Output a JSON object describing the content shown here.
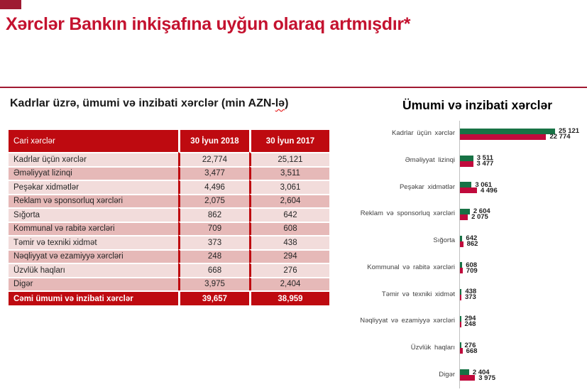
{
  "header": {
    "title": "Xərclər Bankın inkişafına uyğun olaraq artmışdır*",
    "title_color": "#C4122F",
    "brand_mark_color": "#9E1B32",
    "divider_color": "#A11931"
  },
  "table": {
    "title_prefix": "Kadrlar üzrə, ümumi və inzibati xərclər (min AZN-",
    "title_wavy": "lə",
    "title_suffix": ")",
    "columns": [
      "Cari xərclər",
      "30 İyun 2018",
      "30 İyun 2017"
    ],
    "rows": [
      {
        "label": "Kadrlar üçün xərclər",
        "y2018": "22,774",
        "y2017": "25,121"
      },
      {
        "label": "Əməliyyat lizinqi",
        "y2018": "3,477",
        "y2017": "3,511"
      },
      {
        "label": "Peşəkar xidmətlər",
        "y2018": "4,496",
        "y2017": "3,061"
      },
      {
        "label": "Reklam və sponsorluq xərcləri",
        "y2018": "2,075",
        "y2017": "2,604"
      },
      {
        "label": "Sığorta",
        "y2018": "862",
        "y2017": "642"
      },
      {
        "label": "Kommunal və rabitə xərcləri",
        "y2018": "709",
        "y2017": "608"
      },
      {
        "label": "Təmir və texniki xidmət",
        "y2018": "373",
        "y2017": "438"
      },
      {
        "label": "Nəqliyyat və ezamiyyə xərcləri",
        "y2018": "248",
        "y2017": "294"
      },
      {
        "label": "Üzvlük haqları",
        "y2018": "668",
        "y2017": "276"
      },
      {
        "label": "Digər",
        "y2018": "3,975",
        "y2017": "2,404"
      }
    ],
    "total": {
      "label": "Cəmi ümumi və inzibati xərclər",
      "y2018": "39,657",
      "y2017": "38,959"
    },
    "header_bg": "#BE0A10",
    "row_light": "#F2DCDB",
    "row_dark": "#E6B9B8"
  },
  "chart_data": {
    "type": "bar",
    "orientation": "horizontal",
    "title": "Ümumi və inzibati xərclər",
    "categories": [
      "Kadrlar üçün xərclər",
      "Əməliyyat lizinqi",
      "Peşəkar xidmətlər",
      "Reklam və sponsorluq xərcləri",
      "Sığorta",
      "Kommunal və rabitə xərcləri",
      "Təmir və texniki xidmət",
      "Nəqliyyat və ezamiyyə xərcləri",
      "Üzvlük haqları",
      "Digər"
    ],
    "series": [
      {
        "name": "30 İyun 2017",
        "color": "#177245",
        "values": [
          25121,
          3511,
          3061,
          2604,
          642,
          608,
          438,
          294,
          276,
          2404
        ]
      },
      {
        "name": "30 İyun 2018",
        "color": "#C00A3C",
        "values": [
          22774,
          3477,
          4496,
          2075,
          862,
          709,
          373,
          248,
          668,
          3975
        ]
      }
    ],
    "value_labels": [
      [
        "25 121",
        "22 774"
      ],
      [
        "3 511",
        "3 477"
      ],
      [
        "3 061",
        "4 496"
      ],
      [
        "2 604",
        "2 075"
      ],
      [
        "642",
        "862"
      ],
      [
        "608",
        "709"
      ],
      [
        "438",
        "373"
      ],
      [
        "294",
        "248"
      ],
      [
        "276",
        "668"
      ],
      [
        "2 404",
        "3 975"
      ]
    ],
    "xlim": [
      0,
      26000
    ],
    "legend": "none",
    "grid": false,
    "axis_line_color": "#BFBFBF"
  }
}
